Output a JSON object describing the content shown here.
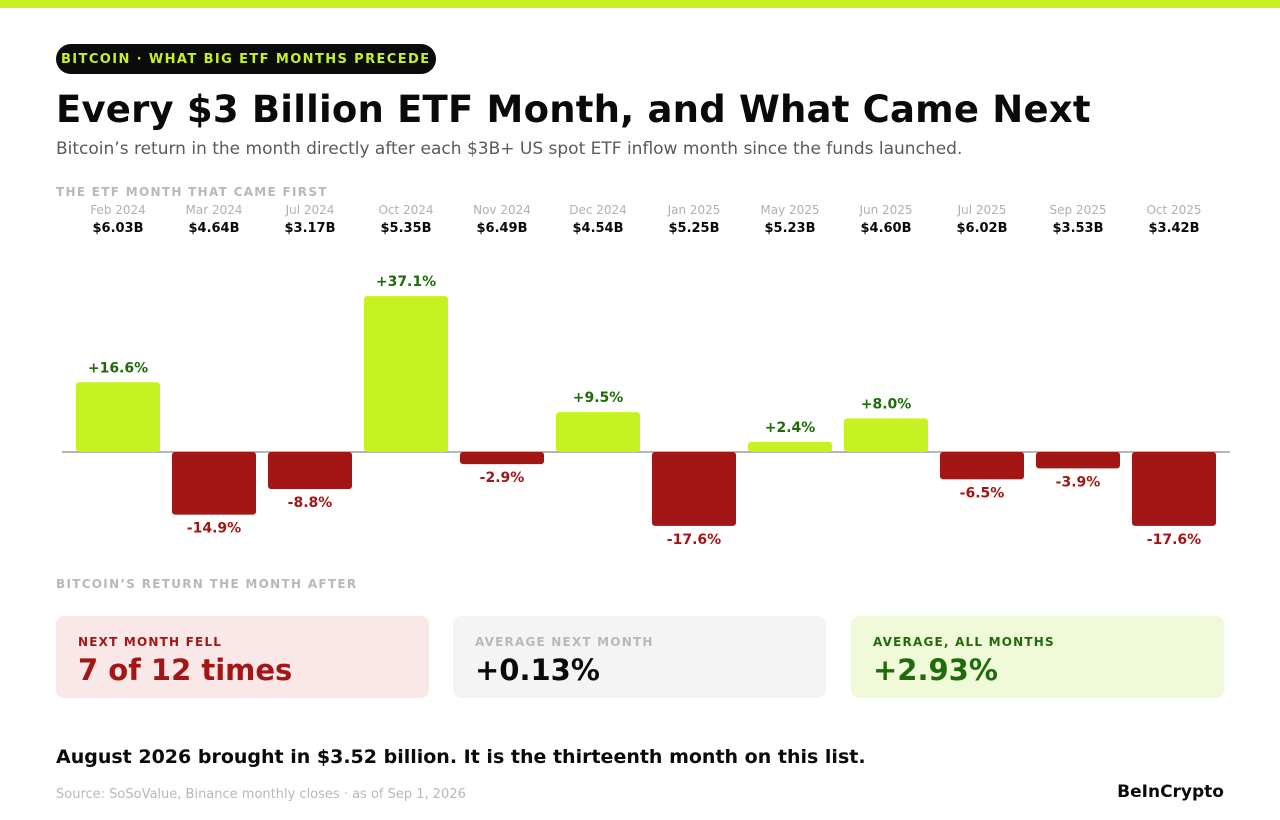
{
  "header": {
    "kicker": "BITCOIN · WHAT BIG ETF MONTHS PRECEDE",
    "title": "Every $3 Billion ETF Month, and What Came Next",
    "subtitle": "Bitcoin’s return in the month directly after each $3B+ US spot ETF inflow month since the funds launched."
  },
  "labels": {
    "top": "THE ETF MONTH THAT CAME FIRST",
    "bottom": "BITCOIN’S RETURN THE MONTH AFTER"
  },
  "colors": {
    "accent": "#c6f221",
    "positive_bar": "#c6f221",
    "positive_text": "#1f6b0a",
    "negative": "#a41515"
  },
  "chart_data": {
    "type": "bar",
    "categories": [
      "Feb 2024",
      "Mar 2024",
      "Jul 2024",
      "Oct 2024",
      "Nov 2024",
      "Dec 2024",
      "Jan 2025",
      "May 2025",
      "Jun 2025",
      "Jul 2025",
      "Sep 2025",
      "Oct 2025"
    ],
    "inflows": [
      "$6.03B",
      "$4.64B",
      "$3.17B",
      "$5.35B",
      "$6.49B",
      "$4.54B",
      "$5.25B",
      "$5.23B",
      "$4.60B",
      "$6.02B",
      "$3.53B",
      "$3.42B"
    ],
    "values": [
      16.6,
      -14.9,
      -8.8,
      37.1,
      -2.9,
      9.5,
      -17.6,
      2.4,
      8.0,
      -6.5,
      -3.9,
      -17.6
    ],
    "value_labels": [
      "+16.6%",
      "-14.9%",
      "-8.8%",
      "+37.1%",
      "-2.9%",
      "+9.5%",
      "-17.6%",
      "+2.4%",
      "+8.0%",
      "-6.5%",
      "-3.9%",
      "-17.6%"
    ],
    "ylim": [
      -17.6,
      37.1
    ],
    "grid": false
  },
  "stats": {
    "fell": {
      "label": "NEXT MONTH FELL",
      "value": "7 of 12 times"
    },
    "avg_next": {
      "label": "AVERAGE NEXT MONTH",
      "value": "+0.13%"
    },
    "avg_all": {
      "label": "AVERAGE, ALL MONTHS",
      "value": "+2.93%"
    }
  },
  "footer": {
    "note": "August 2026 brought in $3.52 billion. It is the thirteenth month on this list.",
    "source": "Source: SoSoValue, Binance monthly closes · as of Sep 1, 2026",
    "brand": "BeInCrypto"
  }
}
